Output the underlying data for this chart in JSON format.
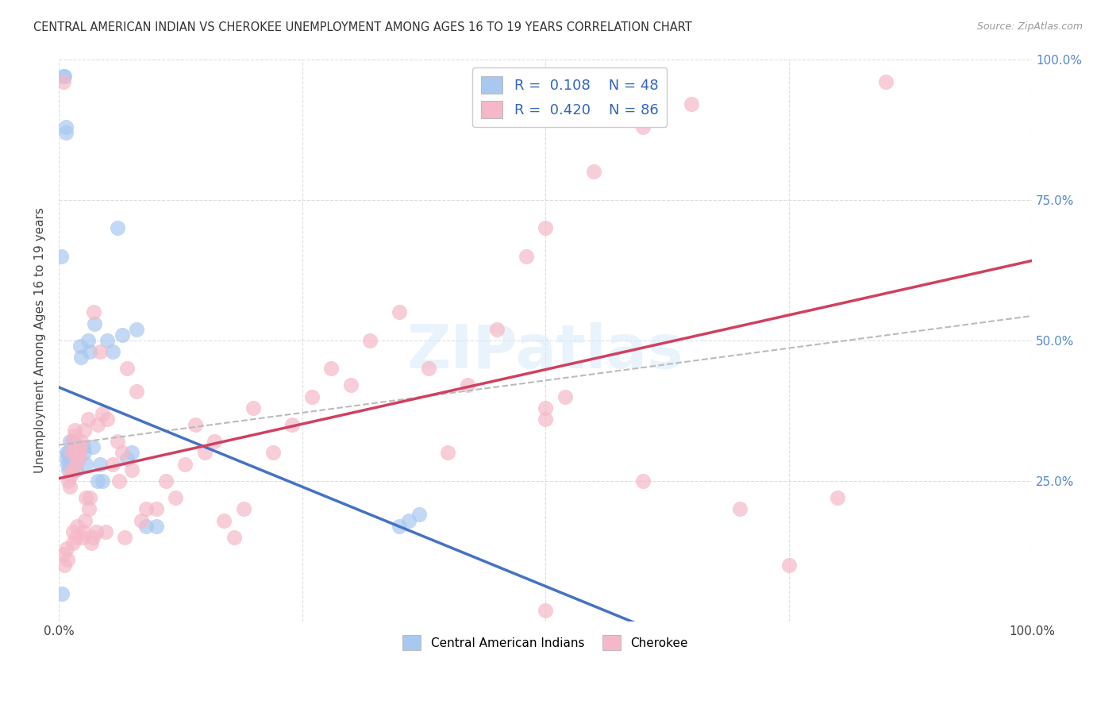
{
  "title": "CENTRAL AMERICAN INDIAN VS CHEROKEE UNEMPLOYMENT AMONG AGES 16 TO 19 YEARS CORRELATION CHART",
  "source": "Source: ZipAtlas.com",
  "ylabel": "Unemployment Among Ages 16 to 19 years",
  "watermark": "ZIPatlas",
  "legend_blue_label": "R =  0.108    N = 48",
  "legend_pink_label": "R =  0.420    N = 86",
  "blue_color": "#A8C8F0",
  "pink_color": "#F5B8C8",
  "blue_line_color": "#4472C4",
  "pink_line_color": "#D04060",
  "dash_line_color": "#BBBBBB",
  "grid_color": "#DDDDDD",
  "background_color": "#FFFFFF",
  "blue_x": [
    0.003,
    0.005,
    0.006,
    0.007,
    0.007,
    0.008,
    0.008,
    0.009,
    0.01,
    0.01,
    0.011,
    0.012,
    0.013,
    0.014,
    0.015,
    0.015,
    0.016,
    0.017,
    0.018,
    0.018,
    0.019,
    0.02,
    0.021,
    0.022,
    0.023,
    0.025,
    0.026,
    0.028,
    0.03,
    0.032,
    0.035,
    0.037,
    0.04,
    0.042,
    0.045,
    0.05,
    0.055,
    0.06,
    0.065,
    0.07,
    0.075,
    0.08,
    0.09,
    0.1,
    0.35,
    0.36,
    0.37,
    0.002
  ],
  "blue_y": [
    0.05,
    0.97,
    0.97,
    0.87,
    0.88,
    0.29,
    0.3,
    0.28,
    0.27,
    0.3,
    0.32,
    0.29,
    0.28,
    0.27,
    0.3,
    0.32,
    0.29,
    0.31,
    0.27,
    0.29,
    0.3,
    0.29,
    0.31,
    0.49,
    0.47,
    0.31,
    0.3,
    0.28,
    0.5,
    0.48,
    0.31,
    0.53,
    0.25,
    0.28,
    0.25,
    0.5,
    0.48,
    0.7,
    0.51,
    0.29,
    0.3,
    0.52,
    0.17,
    0.17,
    0.17,
    0.18,
    0.19,
    0.65
  ],
  "pink_x": [
    0.005,
    0.006,
    0.008,
    0.009,
    0.01,
    0.011,
    0.012,
    0.013,
    0.013,
    0.014,
    0.015,
    0.015,
    0.016,
    0.016,
    0.017,
    0.018,
    0.018,
    0.019,
    0.02,
    0.021,
    0.022,
    0.023,
    0.024,
    0.025,
    0.026,
    0.027,
    0.028,
    0.03,
    0.031,
    0.032,
    0.033,
    0.035,
    0.036,
    0.038,
    0.04,
    0.042,
    0.045,
    0.048,
    0.05,
    0.055,
    0.06,
    0.062,
    0.065,
    0.068,
    0.07,
    0.075,
    0.08,
    0.085,
    0.09,
    0.1,
    0.11,
    0.12,
    0.13,
    0.14,
    0.15,
    0.16,
    0.17,
    0.18,
    0.19,
    0.2,
    0.22,
    0.24,
    0.26,
    0.28,
    0.3,
    0.32,
    0.35,
    0.38,
    0.4,
    0.42,
    0.45,
    0.48,
    0.5,
    0.55,
    0.6,
    0.65,
    0.7,
    0.75,
    0.8,
    0.85,
    0.5,
    0.52,
    0.5,
    0.6,
    0.005,
    0.5
  ],
  "pink_y": [
    0.12,
    0.1,
    0.13,
    0.11,
    0.25,
    0.24,
    0.26,
    0.27,
    0.3,
    0.32,
    0.14,
    0.16,
    0.34,
    0.33,
    0.3,
    0.28,
    0.15,
    0.17,
    0.29,
    0.3,
    0.31,
    0.32,
    0.15,
    0.16,
    0.34,
    0.18,
    0.22,
    0.36,
    0.2,
    0.22,
    0.14,
    0.15,
    0.55,
    0.16,
    0.35,
    0.48,
    0.37,
    0.16,
    0.36,
    0.28,
    0.32,
    0.25,
    0.3,
    0.15,
    0.45,
    0.27,
    0.41,
    0.18,
    0.2,
    0.2,
    0.25,
    0.22,
    0.28,
    0.35,
    0.3,
    0.32,
    0.18,
    0.15,
    0.2,
    0.38,
    0.3,
    0.35,
    0.4,
    0.45,
    0.42,
    0.5,
    0.55,
    0.45,
    0.3,
    0.42,
    0.52,
    0.65,
    0.7,
    0.8,
    0.88,
    0.92,
    0.2,
    0.1,
    0.22,
    0.96,
    0.38,
    0.4,
    0.02,
    0.25,
    0.96,
    0.36
  ]
}
